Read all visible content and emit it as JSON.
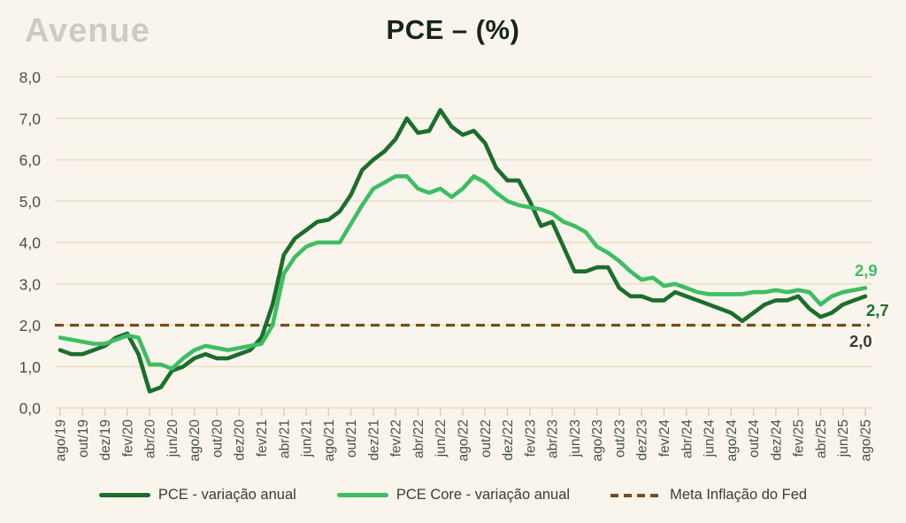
{
  "header": {
    "logo": "Avenue",
    "title": "PCE – (%)"
  },
  "colors": {
    "background": "#f9f5ec",
    "gridline": "#ece3cd",
    "tick": "#d9cfb4",
    "axis_text": "#46514a",
    "title_text": "#15241b",
    "logo_text": "#c9cdc5",
    "legend_text": "#3c3c35",
    "pce": "#1b6e2c",
    "pce_core": "#3dbe63",
    "target": "#7a4b20",
    "end_label_target": "#3c3b33"
  },
  "legend": {
    "items": [
      {
        "label": "PCE - variação anual",
        "series": "pce",
        "style": "solid"
      },
      {
        "label": "PCE Core - variação anual",
        "series": "pce_core",
        "style": "solid"
      },
      {
        "label": "Meta Inflação do Fed",
        "series": "target",
        "style": "dashed"
      }
    ]
  },
  "chart_data": {
    "type": "line",
    "title": "PCE – (%)",
    "xlabel": "",
    "ylabel": "",
    "ylim": [
      0,
      8
    ],
    "grid": true,
    "legend_position": "bottom",
    "y_tick_labels": [
      "8,0",
      "7,0",
      "6,0",
      "5,0",
      "4,0",
      "3,0",
      "2,0",
      "1,0",
      "0,0"
    ],
    "x": [
      "ago/19",
      "set/19",
      "out/19",
      "nov/19",
      "dez/19",
      "jan/20",
      "fev/20",
      "mar/20",
      "abr/20",
      "mai/20",
      "jun/20",
      "jul/20",
      "ago/20",
      "set/20",
      "out/20",
      "nov/20",
      "dez/20",
      "jan/21",
      "fev/21",
      "mar/21",
      "abr/21",
      "mai/21",
      "jun/21",
      "jul/21",
      "ago/21",
      "set/21",
      "out/21",
      "nov/21",
      "dez/21",
      "jan/22",
      "fev/22",
      "mar/22",
      "abr/22",
      "mai/22",
      "jun/22",
      "jul/22",
      "ago/22",
      "set/22",
      "out/22",
      "nov/22",
      "dez/22",
      "jan/23",
      "fev/23",
      "mar/23",
      "abr/23",
      "mai/23",
      "jun/23",
      "jul/23",
      "ago/23",
      "set/23",
      "out/23",
      "nov/23",
      "dez/23",
      "jan/24",
      "fev/24",
      "mar/24",
      "abr/24",
      "mai/24",
      "jun/24",
      "jul/24",
      "ago/24",
      "set/24",
      "out/24",
      "nov/24",
      "dez/24",
      "jan/25",
      "fev/25",
      "mar/25",
      "abr/25",
      "mai/25",
      "jun/25",
      "jul/25",
      "ago/25"
    ],
    "x_tick_labels": [
      "ago/19",
      "out/19",
      "dez/19",
      "fev/20",
      "abr/20",
      "jun/20",
      "ago/20",
      "out/20",
      "dez/20",
      "fev/21",
      "abr/21",
      "jun/21",
      "ago/21",
      "out/21",
      "dez/21",
      "fev/22",
      "abr/22",
      "jun/22",
      "ago/22",
      "out/22",
      "dez/22",
      "fev/23",
      "abr/23",
      "jun/23",
      "ago/23",
      "out/23",
      "dez/23",
      "fev/24",
      "abr/24",
      "jun/24",
      "ago/24",
      "out/24",
      "dez/24",
      "fev/25",
      "abr/25",
      "jun/25",
      "ago/25"
    ],
    "series": [
      {
        "name": "PCE - variação anual",
        "series_key": "pce",
        "style": "solid",
        "values": [
          1.4,
          1.3,
          1.3,
          1.4,
          1.5,
          1.7,
          1.8,
          1.3,
          0.4,
          0.5,
          0.9,
          1.0,
          1.2,
          1.3,
          1.2,
          1.2,
          1.3,
          1.4,
          1.7,
          2.5,
          3.7,
          4.1,
          4.3,
          4.5,
          4.55,
          4.75,
          5.15,
          5.75,
          6.0,
          6.2,
          6.5,
          7.0,
          6.65,
          6.7,
          7.2,
          6.8,
          6.6,
          6.7,
          6.4,
          5.8,
          5.5,
          5.5,
          5.0,
          4.4,
          4.5,
          3.9,
          3.3,
          3.3,
          3.4,
          3.4,
          2.9,
          2.7,
          2.7,
          2.6,
          2.6,
          2.8,
          2.7,
          2.6,
          2.5,
          2.4,
          2.3,
          2.1,
          2.3,
          2.5,
          2.6,
          2.6,
          2.7,
          2.4,
          2.2,
          2.3,
          2.5,
          2.6,
          2.7
        ]
      },
      {
        "name": "PCE Core - variação anual",
        "series_key": "pce_core",
        "style": "solid",
        "values": [
          1.7,
          1.65,
          1.6,
          1.55,
          1.55,
          1.65,
          1.75,
          1.7,
          1.05,
          1.05,
          0.95,
          1.2,
          1.4,
          1.5,
          1.45,
          1.4,
          1.45,
          1.5,
          1.55,
          2.0,
          3.25,
          3.65,
          3.9,
          4.0,
          4.0,
          4.0,
          4.45,
          4.9,
          5.3,
          5.45,
          5.6,
          5.6,
          5.3,
          5.2,
          5.3,
          5.1,
          5.3,
          5.6,
          5.45,
          5.2,
          5.0,
          4.9,
          4.85,
          4.8,
          4.7,
          4.5,
          4.4,
          4.25,
          3.9,
          3.75,
          3.55,
          3.3,
          3.1,
          3.15,
          2.95,
          3.0,
          2.9,
          2.8,
          2.75,
          2.75,
          2.75,
          2.75,
          2.8,
          2.8,
          2.85,
          2.8,
          2.85,
          2.8,
          2.5,
          2.7,
          2.8,
          2.85,
          2.9
        ]
      },
      {
        "name": "Meta Inflação do Fed",
        "series_key": "target",
        "style": "dashed",
        "constant_value": 2.0
      }
    ],
    "end_labels": [
      {
        "text": "2,9",
        "series": "pce_core"
      },
      {
        "text": "2,7",
        "series": "pce"
      },
      {
        "text": "2,0",
        "series": "target"
      }
    ]
  }
}
